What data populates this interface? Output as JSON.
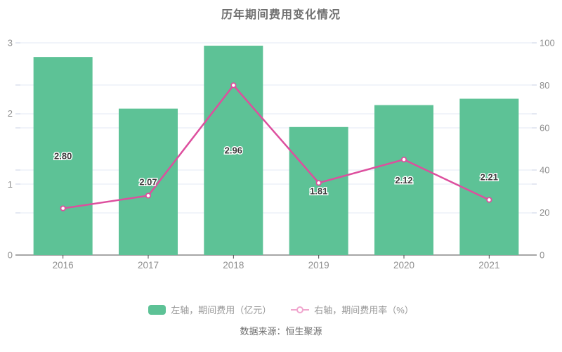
{
  "title": "历年期间费用变化情况",
  "source": "数据来源：恒生聚源",
  "legend": {
    "bar": {
      "label": "左轴，期间费用（亿元）"
    },
    "line": {
      "label": "右轴，期间费用率（%）"
    }
  },
  "colors": {
    "bar": "#5dc296",
    "line": "#dd4f9e",
    "legend_line_icon": "#f0a6ce",
    "marker_fill": "#ffffff",
    "grid": "#e3e9f5",
    "axis_line": "#4d4d4d",
    "side_tick": "#c9d2e6",
    "axis_label": "#8f8f8f",
    "value_label": "#3d3d3d",
    "value_label_halo": "#ffffff"
  },
  "chart_data": {
    "type": "bar",
    "title": "历年期间费用变化情况",
    "categories": [
      "2016",
      "2017",
      "2018",
      "2019",
      "2020",
      "2021"
    ],
    "series": [
      {
        "name": "左轴，期间费用（亿元）",
        "type": "bar",
        "axis": "left",
        "values": [
          2.8,
          2.07,
          2.96,
          1.81,
          2.12,
          2.21
        ],
        "labels": [
          "2.80",
          "2.07",
          "2.96",
          "1.81",
          "2.12",
          "2.21"
        ]
      },
      {
        "name": "右轴，期间费用率（%）",
        "type": "line",
        "axis": "right",
        "values": [
          22,
          28,
          80,
          34,
          45,
          26
        ]
      }
    ],
    "left_axis": {
      "min": 0,
      "max": 3,
      "ticks": [
        0,
        1,
        2,
        3
      ]
    },
    "right_axis": {
      "min": 0,
      "max": 100,
      "ticks": [
        0,
        20,
        40,
        60,
        80,
        100
      ]
    },
    "grid": true,
    "legend_position": "bottom"
  }
}
